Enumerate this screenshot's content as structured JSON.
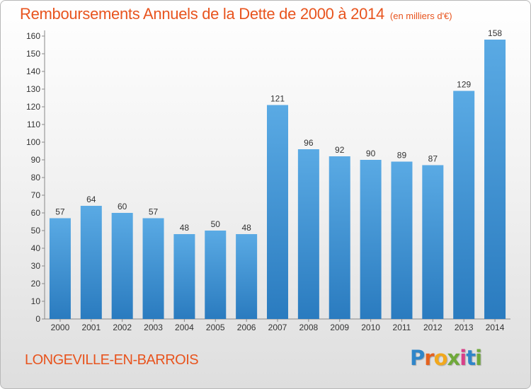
{
  "title": "Remboursements Annuels de la Dette de 2000 à 2014",
  "unit": "(en milliers d'€)",
  "commune": "LONGEVILLE-EN-BARROIS",
  "logo": {
    "letters": [
      "P",
      "r",
      "o",
      "x",
      "i",
      "t",
      "i"
    ],
    "colors": [
      "#2f86c9",
      "#e4621f",
      "#f2a81d",
      "#6fa93a",
      "#d83f88",
      "#2f86c9",
      "#6fa93a"
    ]
  },
  "colors": {
    "title": "#e8541e",
    "bar_light": "#5aaae4",
    "bar_dark": "#2a7bbf"
  },
  "chart_data": {
    "type": "bar",
    "categories": [
      "2000",
      "2001",
      "2002",
      "2003",
      "2004",
      "2005",
      "2006",
      "2007",
      "2008",
      "2009",
      "2010",
      "2011",
      "2012",
      "2013",
      "2014"
    ],
    "values": [
      57,
      64,
      60,
      57,
      48,
      50,
      48,
      121,
      96,
      92,
      90,
      89,
      87,
      129,
      158
    ],
    "yticks": [
      0,
      10,
      20,
      30,
      40,
      50,
      60,
      70,
      80,
      90,
      100,
      110,
      120,
      130,
      140,
      150,
      160
    ],
    "ylim": [
      0,
      160
    ],
    "grid": false,
    "data_labels": true
  }
}
